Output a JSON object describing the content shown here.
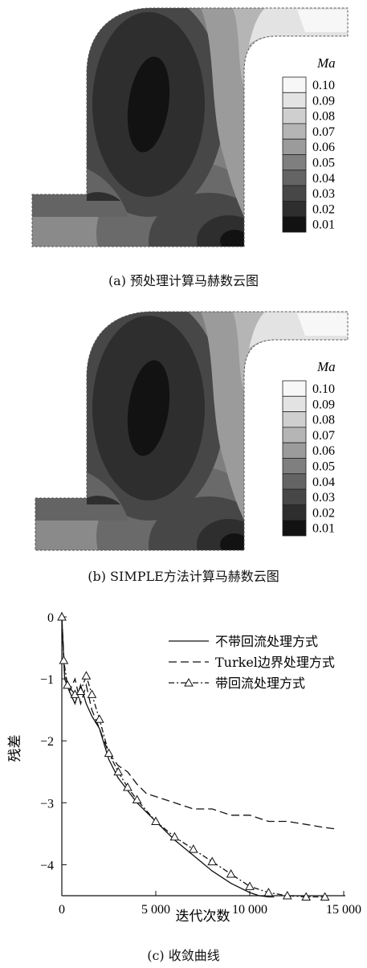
{
  "contour_panels": [
    {
      "caption": "(a)  预处理计算马赫数云图",
      "legend_title": "Ma",
      "levels": [
        "0.10",
        "0.09",
        "0.08",
        "0.07",
        "0.06",
        "0.05",
        "0.04",
        "0.03",
        "0.02",
        "0.01"
      ]
    },
    {
      "caption": "(b)  SIMPLE方法计算马赫数云图",
      "legend_title": "Ma",
      "levels": [
        "0.10",
        "0.09",
        "0.08",
        "0.07",
        "0.06",
        "0.05",
        "0.04",
        "0.03",
        "0.02",
        "0.01"
      ]
    }
  ],
  "level_colors": [
    "#f7f7f7",
    "#e3e3e3",
    "#cfcfcf",
    "#b5b5b5",
    "#9b9b9b",
    "#7f7f7f",
    "#646464",
    "#474747",
    "#2e2e2e",
    "#121212"
  ],
  "chart_data": {
    "type": "line",
    "caption": "(c)  收敛曲线",
    "xlabel": "迭代次数",
    "ylabel": "残差",
    "xlim": [
      0,
      15000
    ],
    "ylim": [
      -4.5,
      0
    ],
    "xticks": [
      0,
      5000,
      10000,
      15000
    ],
    "xtick_labels": [
      "0",
      "5 000",
      "10 000",
      "15 000"
    ],
    "yticks": [
      0,
      -1,
      -2,
      -3,
      -4
    ],
    "ytick_labels": [
      "0",
      "−1",
      "−2",
      "−3",
      "−4"
    ],
    "legend_position": "top-right",
    "series": [
      {
        "name": "不带回流处理方式",
        "style": "solid",
        "x": [
          0,
          150,
          400,
          700,
          1000,
          1300,
          1600,
          2000,
          2500,
          3000,
          3500,
          4000,
          5000,
          6000,
          7000,
          8000,
          9000,
          10000,
          10500,
          11000,
          11300
        ],
        "y": [
          0,
          -1.0,
          -1.2,
          -1.4,
          -1.1,
          -1.4,
          -1.6,
          -1.8,
          -2.3,
          -2.6,
          -2.8,
          -3.0,
          -3.3,
          -3.6,
          -3.85,
          -4.1,
          -4.3,
          -4.45,
          -4.5,
          -4.52,
          -4.52
        ]
      },
      {
        "name": "Turkel边界处理方式",
        "style": "dashed",
        "x": [
          0,
          150,
          400,
          700,
          1000,
          1300,
          1600,
          2000,
          2500,
          3000,
          3500,
          4000,
          4500,
          5000,
          6000,
          7000,
          8000,
          9000,
          10000,
          11000,
          12000,
          13000,
          14000,
          14500
        ],
        "y": [
          0,
          -0.9,
          -1.2,
          -1.0,
          -1.4,
          -1.1,
          -1.5,
          -1.8,
          -2.2,
          -2.4,
          -2.5,
          -2.7,
          -2.85,
          -2.9,
          -3.0,
          -3.1,
          -3.1,
          -3.2,
          -3.2,
          -3.3,
          -3.3,
          -3.35,
          -3.4,
          -3.42
        ]
      },
      {
        "name": "带回流处理方式",
        "style": "dashdot-triangle",
        "x": [
          0,
          100,
          300,
          700,
          1000,
          1300,
          1600,
          2000,
          2500,
          3000,
          3500,
          4000,
          5000,
          6000,
          7000,
          8000,
          9000,
          10000,
          11000,
          12000,
          13000,
          14000
        ],
        "y": [
          0,
          -0.7,
          -1.1,
          -1.25,
          -1.2,
          -0.95,
          -1.25,
          -1.65,
          -2.2,
          -2.5,
          -2.75,
          -2.95,
          -3.3,
          -3.55,
          -3.75,
          -3.95,
          -4.15,
          -4.35,
          -4.45,
          -4.5,
          -4.52,
          -4.52
        ]
      }
    ]
  }
}
